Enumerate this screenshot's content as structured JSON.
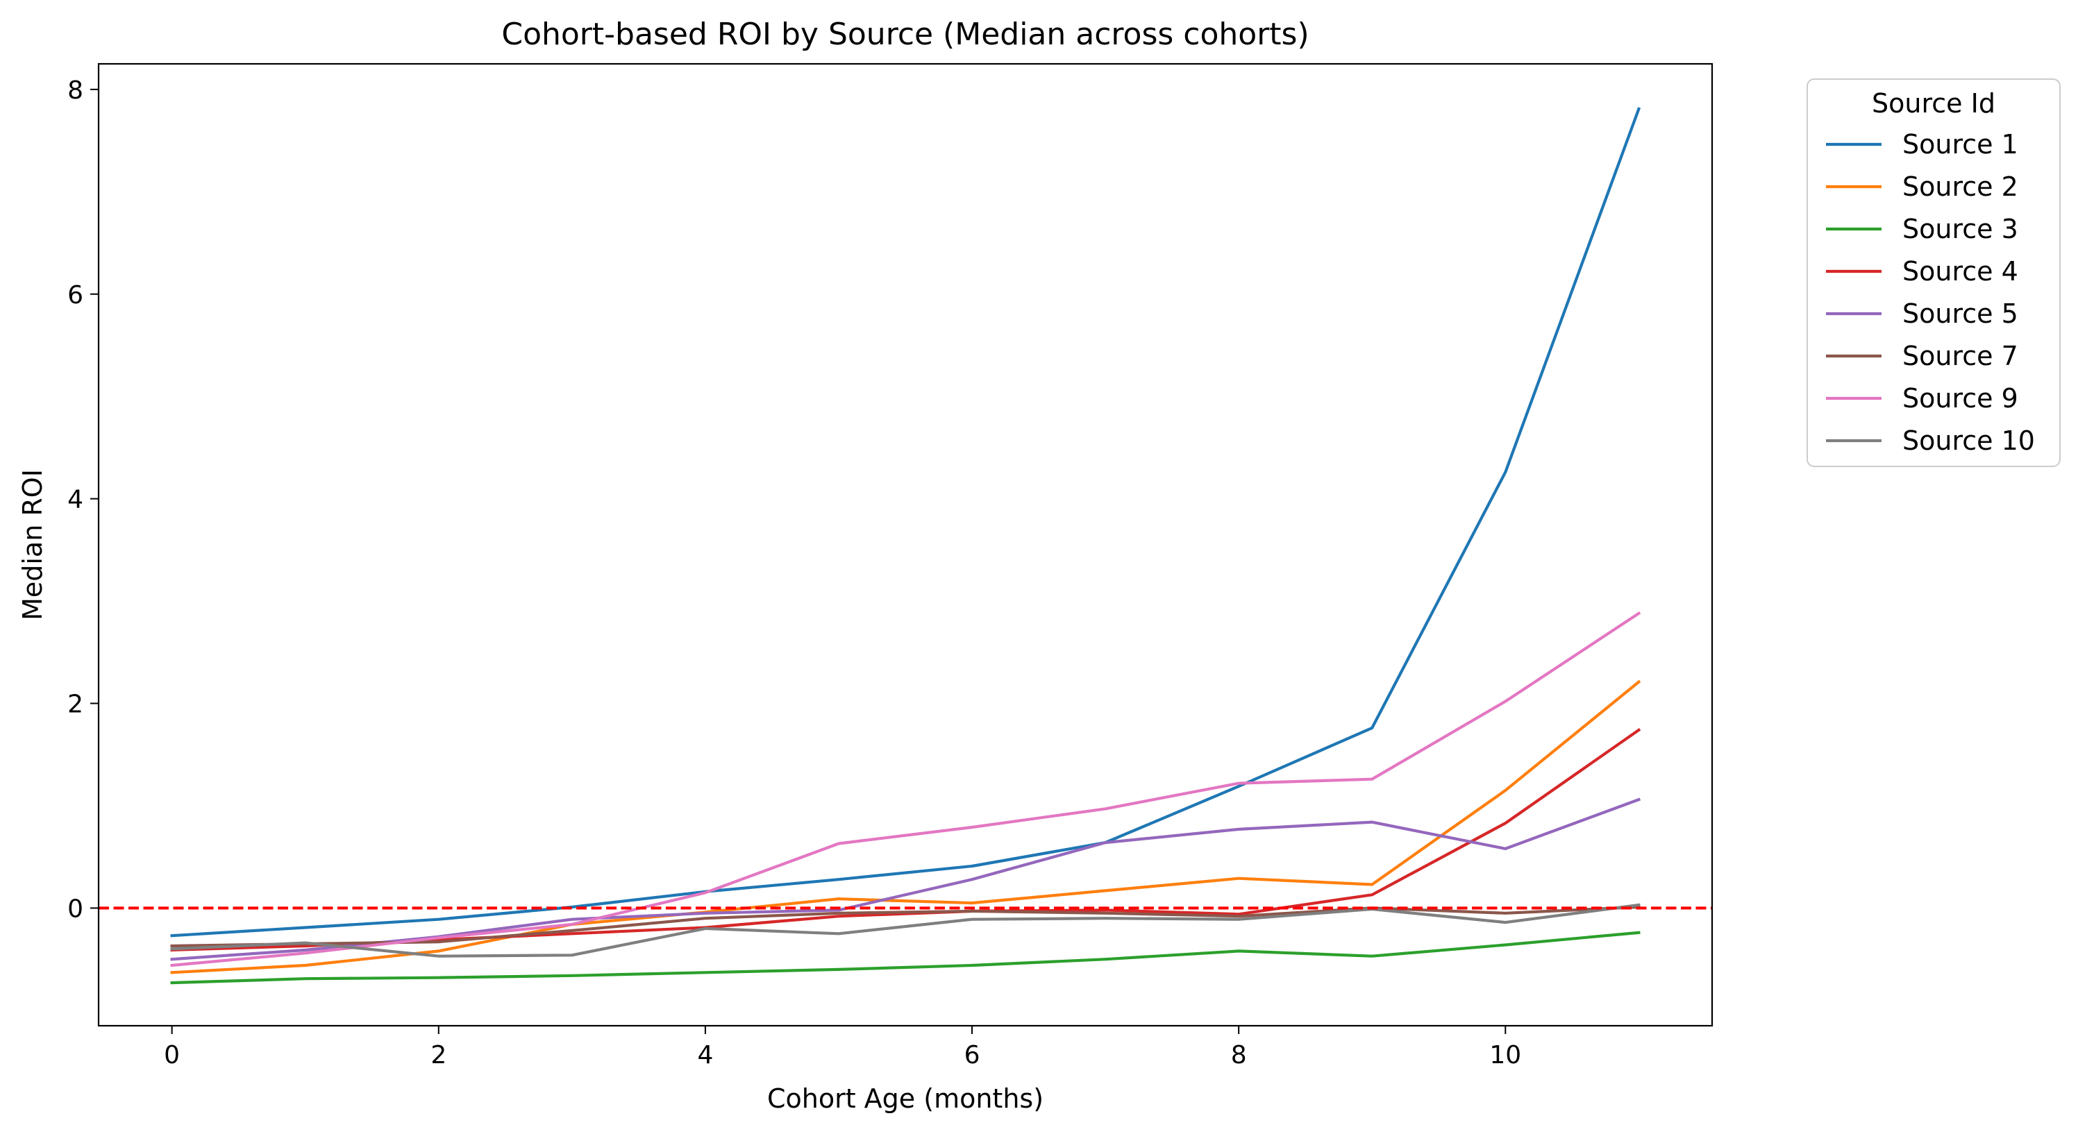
{
  "chart_data": {
    "type": "line",
    "title": "Cohort-based ROI by Source (Median across cohorts)",
    "xlabel": "Cohort Age (months)",
    "ylabel": "Median ROI",
    "xlim": [
      -0.55,
      11.55
    ],
    "ylim": [
      -1.15,
      8.25
    ],
    "xticks": [
      0,
      2,
      4,
      6,
      8,
      10
    ],
    "yticks": [
      0,
      2,
      4,
      6,
      8
    ],
    "grid": false,
    "legend": {
      "title": "Source Id",
      "placement": "outside-top-right"
    },
    "reference_line": {
      "y": 0,
      "color": "#ff0000",
      "style": "dashed"
    },
    "x": [
      0,
      1,
      2,
      3,
      4,
      5,
      6,
      7,
      8,
      9,
      10,
      11
    ],
    "series": [
      {
        "name": "Source 1",
        "color": "#1f77b4",
        "values": [
          -0.27,
          -0.19,
          -0.11,
          0.01,
          0.16,
          0.28,
          0.41,
          0.64,
          1.19,
          1.76,
          4.26,
          7.81
        ]
      },
      {
        "name": "Source 2",
        "color": "#ff7f0e",
        "values": [
          -0.63,
          -0.56,
          -0.42,
          -0.16,
          -0.04,
          0.09,
          0.05,
          0.17,
          0.29,
          0.23,
          1.15,
          2.21
        ]
      },
      {
        "name": "Source 3",
        "color": "#2ca02c",
        "values": [
          -0.73,
          -0.69,
          -0.68,
          -0.66,
          -0.63,
          -0.6,
          -0.56,
          -0.5,
          -0.42,
          -0.47,
          -0.36,
          -0.24
        ]
      },
      {
        "name": "Source 4",
        "color": "#d62728",
        "values": [
          -0.41,
          -0.37,
          -0.31,
          -0.25,
          -0.19,
          -0.08,
          -0.03,
          -0.02,
          -0.06,
          0.13,
          0.83,
          1.74
        ]
      },
      {
        "name": "Source 5",
        "color": "#9467bd",
        "values": [
          -0.5,
          -0.41,
          -0.28,
          -0.11,
          -0.05,
          -0.02,
          0.28,
          0.64,
          0.77,
          0.84,
          0.58,
          1.06
        ]
      },
      {
        "name": "Source 7",
        "color": "#8c564b",
        "values": [
          -0.37,
          -0.35,
          -0.33,
          -0.22,
          -0.1,
          -0.05,
          -0.03,
          -0.05,
          -0.08,
          0.0,
          -0.05,
          0.01
        ]
      },
      {
        "name": "Source 9",
        "color": "#e377c2",
        "values": [
          -0.56,
          -0.44,
          -0.29,
          -0.16,
          0.15,
          0.63,
          0.79,
          0.97,
          1.22,
          1.26,
          2.02,
          2.88
        ]
      },
      {
        "name": "Source 10",
        "color": "#7f7f7f",
        "values": [
          -0.4,
          -0.34,
          -0.47,
          -0.46,
          -0.2,
          -0.25,
          -0.11,
          -0.1,
          -0.11,
          -0.01,
          -0.14,
          0.03
        ]
      }
    ]
  }
}
